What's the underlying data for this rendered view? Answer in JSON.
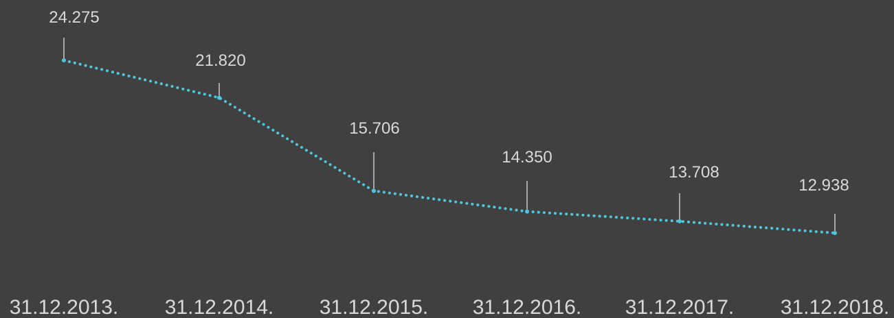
{
  "chart_data": {
    "type": "line",
    "categories": [
      "31.12.2013.",
      "31.12.2014.",
      "31.12.2015.",
      "31.12.2016.",
      "31.12.2017.",
      "31.12.2018."
    ],
    "values": [
      24275,
      21820,
      15706,
      14350,
      13708,
      12938
    ],
    "value_labels": [
      "24.275",
      "21.820",
      "15.706",
      "14.350",
      "13.708",
      "12.938"
    ],
    "color": "#4fc6dc"
  }
}
